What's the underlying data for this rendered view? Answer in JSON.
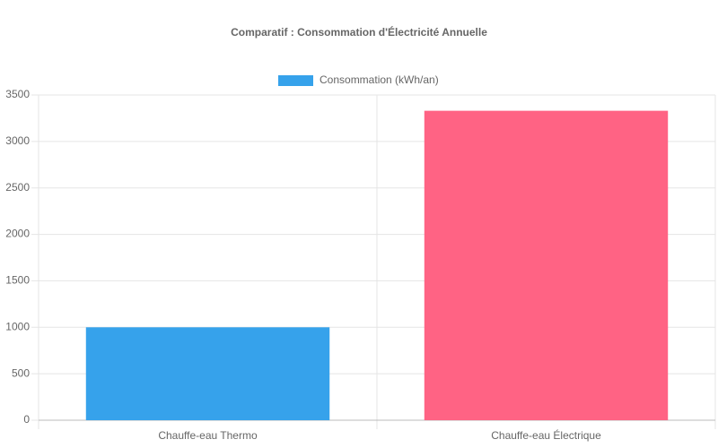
{
  "chart_data": {
    "type": "bar",
    "title": "Comparatif : Consommation d'Électricité Annuelle",
    "categories": [
      "Chauffe-eau Thermo",
      "Chauffe-eau Électrique"
    ],
    "series": [
      {
        "name": "Consommation (kWh/an)",
        "color": "#36a2eb",
        "bar_colors": [
          "#36a2eb",
          "#ff6384"
        ],
        "values": [
          1000,
          3330
        ]
      }
    ],
    "ylim": [
      0,
      3500
    ],
    "yticks": [
      0,
      500,
      1000,
      1500,
      2000,
      2500,
      3000,
      3500
    ],
    "grid": true,
    "legend": "top"
  }
}
